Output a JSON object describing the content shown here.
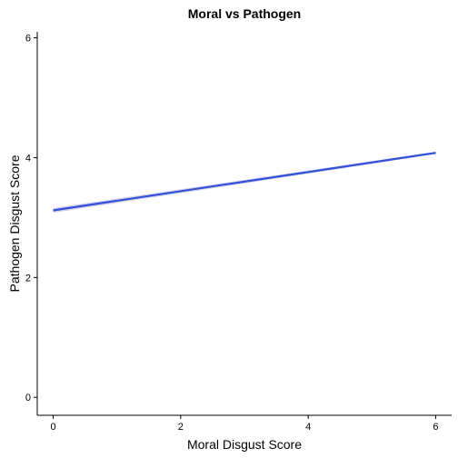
{
  "chart_data": {
    "type": "line",
    "title": "Moral vs Pathogen",
    "xlabel": "Moral Disgust Score",
    "ylabel": "Pathogen Disgust Score",
    "xlim": [
      -0.25,
      6.25
    ],
    "ylim": [
      -0.3,
      6.1
    ],
    "x_ticks": [
      0,
      2,
      4,
      6
    ],
    "y_ticks": [
      0,
      2,
      4,
      6
    ],
    "grid": false,
    "series": [
      {
        "x": [
          0,
          6
        ],
        "y": [
          3.12,
          4.08
        ],
        "ci_lower": [
          3.08,
          4.06
        ],
        "ci_upper": [
          3.16,
          4.1
        ],
        "color": "#3050e0",
        "band_color": "#c8c8d8"
      }
    ]
  }
}
